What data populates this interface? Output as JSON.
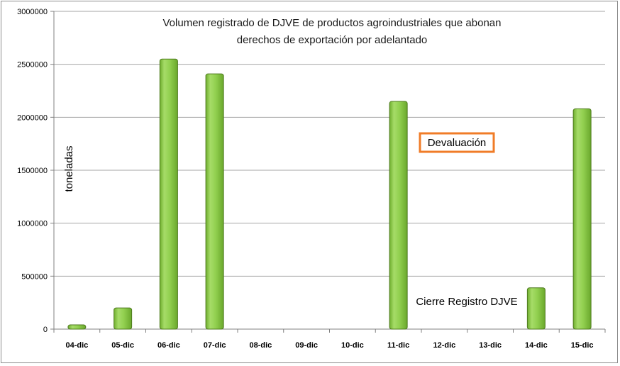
{
  "chart_data": {
    "type": "bar",
    "title_line1": "Volumen registrado de DJVE de productos agroindustriales que abonan",
    "title_line2": "derechos de exportación por adelantado",
    "ylabel": "toneladas",
    "xlabel": "",
    "categories": [
      "04-dic",
      "05-dic",
      "06-dic",
      "07-dic",
      "08-dic",
      "09-dic",
      "10-dic",
      "11-dic",
      "12-dic",
      "13-dic",
      "14-dic",
      "15-dic"
    ],
    "values": [
      40000,
      200000,
      2550000,
      2410000,
      0,
      0,
      0,
      2150000,
      0,
      0,
      390000,
      2080000
    ],
    "ylim": [
      0,
      3000000
    ],
    "yticks": [
      "0",
      "500000",
      "1000000",
      "1500000",
      "2000000",
      "2500000",
      "3000000"
    ],
    "grid": true,
    "legend": "none",
    "annotations": {
      "devaluacion": "Devaluación",
      "cierre": "Cierre Registro DJVE"
    },
    "colors": {
      "bar_fill": "#92d050",
      "bar_edge": "#4e7a1e",
      "annotation_border": "#f07c28",
      "grid": "#a6a6a6"
    }
  }
}
